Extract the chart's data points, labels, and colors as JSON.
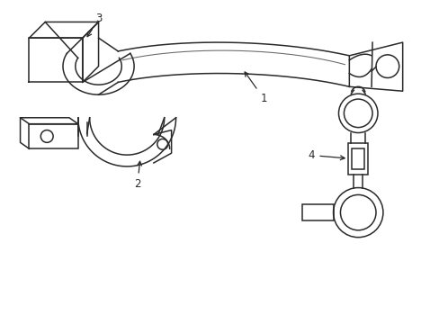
{
  "background_color": "#ffffff",
  "line_color": "#2a2a2a",
  "line_width": 1.1,
  "label_fontsize": 8.5
}
